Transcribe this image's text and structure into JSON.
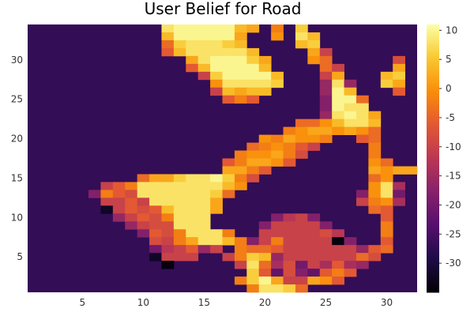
{
  "chart_data": {
    "type": "heatmap",
    "title": "User Belief for Road",
    "xlabel": "",
    "ylabel": "",
    "x_range": [
      0.5,
      32.5
    ],
    "y_range": [
      0.5,
      34.5
    ],
    "x_ticks": [
      5,
      10,
      15,
      20,
      25,
      30
    ],
    "y_ticks": [
      5,
      10,
      15,
      20,
      25,
      30
    ],
    "colorbar": {
      "colormap": "inferno",
      "range": [
        -35,
        11
      ],
      "ticks": [
        10,
        5,
        0,
        -5,
        -10,
        -15,
        -20,
        -25,
        -30
      ]
    },
    "background_value": -27,
    "cells": [
      [
        12,
        34,
        8
      ],
      [
        13,
        34,
        10
      ],
      [
        14,
        34,
        10
      ],
      [
        15,
        34,
        10
      ],
      [
        16,
        34,
        10
      ],
      [
        17,
        34,
        10
      ],
      [
        18,
        34,
        4
      ],
      [
        19,
        34,
        2
      ],
      [
        21,
        34,
        -2
      ],
      [
        23,
        34,
        6
      ],
      [
        12,
        33,
        4
      ],
      [
        13,
        33,
        10
      ],
      [
        14,
        33,
        10
      ],
      [
        15,
        33,
        10
      ],
      [
        16,
        33,
        10
      ],
      [
        17,
        33,
        10
      ],
      [
        18,
        33,
        2
      ],
      [
        21,
        33,
        0
      ],
      [
        23,
        33,
        8
      ],
      [
        24,
        33,
        4
      ],
      [
        12,
        32,
        -4
      ],
      [
        13,
        32,
        6
      ],
      [
        14,
        32,
        8
      ],
      [
        15,
        32,
        8
      ],
      [
        16,
        32,
        8
      ],
      [
        17,
        32,
        6
      ],
      [
        18,
        32,
        4
      ],
      [
        23,
        32,
        4
      ],
      [
        24,
        32,
        6
      ],
      [
        12,
        31,
        -6
      ],
      [
        13,
        31,
        4
      ],
      [
        14,
        31,
        8
      ],
      [
        15,
        31,
        8
      ],
      [
        16,
        31,
        8
      ],
      [
        17,
        31,
        8
      ],
      [
        18,
        31,
        8
      ],
      [
        19,
        31,
        4
      ],
      [
        24,
        31,
        2
      ],
      [
        25,
        31,
        -10
      ],
      [
        14,
        30,
        2
      ],
      [
        15,
        30,
        8
      ],
      [
        16,
        30,
        10
      ],
      [
        17,
        30,
        10
      ],
      [
        18,
        30,
        10
      ],
      [
        19,
        30,
        6
      ],
      [
        20,
        30,
        2
      ],
      [
        24,
        30,
        0
      ],
      [
        25,
        30,
        -4
      ],
      [
        31,
        30,
        -8
      ],
      [
        14,
        29,
        -6
      ],
      [
        15,
        29,
        4
      ],
      [
        16,
        29,
        10
      ],
      [
        17,
        29,
        10
      ],
      [
        18,
        29,
        10
      ],
      [
        19,
        29,
        10
      ],
      [
        20,
        29,
        4
      ],
      [
        25,
        29,
        -4
      ],
      [
        26,
        29,
        -10
      ],
      [
        31,
        29,
        2
      ],
      [
        15,
        28,
        -10
      ],
      [
        16,
        28,
        6
      ],
      [
        17,
        28,
        10
      ],
      [
        18,
        28,
        10
      ],
      [
        19,
        28,
        10
      ],
      [
        20,
        28,
        10
      ],
      [
        21,
        28,
        4
      ],
      [
        25,
        28,
        -10
      ],
      [
        26,
        28,
        2
      ],
      [
        30,
        28,
        4
      ],
      [
        31,
        28,
        6
      ],
      [
        16,
        27,
        0
      ],
      [
        17,
        27,
        8
      ],
      [
        18,
        27,
        8
      ],
      [
        19,
        27,
        8
      ],
      [
        20,
        27,
        8
      ],
      [
        21,
        27,
        6
      ],
      [
        25,
        27,
        -16
      ],
      [
        26,
        27,
        8
      ],
      [
        27,
        27,
        -16
      ],
      [
        30,
        27,
        6
      ],
      [
        31,
        27,
        2
      ],
      [
        16,
        26,
        -10
      ],
      [
        17,
        26,
        4
      ],
      [
        18,
        26,
        2
      ],
      [
        19,
        26,
        4
      ],
      [
        20,
        26,
        4
      ],
      [
        25,
        26,
        -16
      ],
      [
        26,
        26,
        10
      ],
      [
        27,
        26,
        4
      ],
      [
        31,
        26,
        -6
      ],
      [
        17,
        25,
        -6
      ],
      [
        18,
        25,
        -2
      ],
      [
        19,
        25,
        -6
      ],
      [
        25,
        25,
        -18
      ],
      [
        26,
        25,
        10
      ],
      [
        27,
        25,
        10
      ],
      [
        28,
        25,
        -4
      ],
      [
        25,
        24,
        -18
      ],
      [
        26,
        24,
        10
      ],
      [
        27,
        24,
        8
      ],
      [
        28,
        24,
        8
      ],
      [
        25,
        23,
        -16
      ],
      [
        26,
        23,
        8
      ],
      [
        27,
        23,
        10
      ],
      [
        28,
        23,
        8
      ],
      [
        29,
        23,
        2
      ],
      [
        23,
        22,
        -4
      ],
      [
        24,
        22,
        -4
      ],
      [
        25,
        22,
        0
      ],
      [
        26,
        22,
        4
      ],
      [
        27,
        22,
        8
      ],
      [
        28,
        22,
        8
      ],
      [
        29,
        22,
        4
      ],
      [
        22,
        21,
        -2
      ],
      [
        23,
        21,
        0
      ],
      [
        24,
        21,
        2
      ],
      [
        25,
        21,
        2
      ],
      [
        26,
        21,
        0
      ],
      [
        27,
        21,
        2
      ],
      [
        28,
        21,
        0
      ],
      [
        29,
        21,
        -4
      ],
      [
        20,
        20,
        0
      ],
      [
        21,
        20,
        -2
      ],
      [
        22,
        20,
        2
      ],
      [
        23,
        20,
        0
      ],
      [
        24,
        20,
        0
      ],
      [
        25,
        20,
        -2
      ],
      [
        28,
        20,
        -6
      ],
      [
        29,
        20,
        -4
      ],
      [
        19,
        19,
        -4
      ],
      [
        20,
        19,
        -2
      ],
      [
        21,
        19,
        0
      ],
      [
        22,
        19,
        -2
      ],
      [
        23,
        19,
        -6
      ],
      [
        24,
        19,
        -10
      ],
      [
        29,
        19,
        -2
      ],
      [
        18,
        18,
        -2
      ],
      [
        19,
        18,
        0
      ],
      [
        20,
        18,
        0
      ],
      [
        21,
        18,
        2
      ],
      [
        22,
        18,
        -2
      ],
      [
        23,
        18,
        -8
      ],
      [
        29,
        18,
        -2
      ],
      [
        17,
        17,
        -6
      ],
      [
        18,
        17,
        -2
      ],
      [
        19,
        17,
        2
      ],
      [
        20,
        17,
        2
      ],
      [
        21,
        17,
        0
      ],
      [
        22,
        17,
        -6
      ],
      [
        29,
        17,
        0
      ],
      [
        30,
        17,
        -4
      ],
      [
        17,
        16,
        2
      ],
      [
        18,
        16,
        2
      ],
      [
        19,
        16,
        -2
      ],
      [
        20,
        16,
        -6
      ],
      [
        29,
        16,
        2
      ],
      [
        30,
        16,
        0
      ],
      [
        31,
        16,
        2
      ],
      [
        32,
        16,
        2
      ],
      [
        10,
        15,
        -4
      ],
      [
        11,
        15,
        2
      ],
      [
        12,
        15,
        2
      ],
      [
        13,
        15,
        6
      ],
      [
        14,
        15,
        8
      ],
      [
        15,
        15,
        8
      ],
      [
        16,
        15,
        10
      ],
      [
        17,
        15,
        6
      ],
      [
        18,
        15,
        -2
      ],
      [
        19,
        15,
        -8
      ],
      [
        29,
        15,
        -4
      ],
      [
        30,
        15,
        0
      ],
      [
        7,
        14,
        -10
      ],
      [
        8,
        14,
        -6
      ],
      [
        9,
        14,
        -2
      ],
      [
        10,
        14,
        8
      ],
      [
        11,
        14,
        8
      ],
      [
        12,
        14,
        8
      ],
      [
        13,
        14,
        8
      ],
      [
        14,
        14,
        8
      ],
      [
        15,
        14,
        8
      ],
      [
        16,
        14,
        8
      ],
      [
        17,
        14,
        4
      ],
      [
        18,
        14,
        0
      ],
      [
        29,
        14,
        0
      ],
      [
        30,
        14,
        8
      ],
      [
        31,
        14,
        -14
      ],
      [
        6,
        13,
        -18
      ],
      [
        7,
        13,
        -2
      ],
      [
        8,
        13,
        -6
      ],
      [
        9,
        13,
        -8
      ],
      [
        10,
        13,
        8
      ],
      [
        11,
        13,
        8
      ],
      [
        12,
        13,
        8
      ],
      [
        13,
        13,
        8
      ],
      [
        14,
        13,
        8
      ],
      [
        15,
        13,
        8
      ],
      [
        16,
        13,
        6
      ],
      [
        17,
        13,
        -4
      ],
      [
        28,
        13,
        -18
      ],
      [
        29,
        13,
        0
      ],
      [
        30,
        13,
        8
      ],
      [
        31,
        13,
        -20
      ],
      [
        7,
        12,
        -10
      ],
      [
        8,
        12,
        -10
      ],
      [
        9,
        12,
        -6
      ],
      [
        10,
        12,
        -10
      ],
      [
        11,
        12,
        8
      ],
      [
        12,
        12,
        8
      ],
      [
        13,
        12,
        8
      ],
      [
        14,
        12,
        8
      ],
      [
        15,
        12,
        8
      ],
      [
        16,
        12,
        2
      ],
      [
        28,
        12,
        -10
      ],
      [
        29,
        12,
        -2
      ],
      [
        30,
        12,
        0
      ],
      [
        31,
        12,
        -14
      ],
      [
        7,
        11,
        -32
      ],
      [
        8,
        11,
        -10
      ],
      [
        9,
        11,
        -6
      ],
      [
        10,
        11,
        -8
      ],
      [
        11,
        11,
        -6
      ],
      [
        12,
        11,
        4
      ],
      [
        13,
        11,
        8
      ],
      [
        14,
        11,
        8
      ],
      [
        15,
        11,
        8
      ],
      [
        16,
        11,
        2
      ],
      [
        29,
        11,
        -4
      ],
      [
        30,
        11,
        -6
      ],
      [
        8,
        10,
        -16
      ],
      [
        9,
        10,
        -10
      ],
      [
        10,
        10,
        -6
      ],
      [
        11,
        10,
        -8
      ],
      [
        12,
        10,
        -2
      ],
      [
        13,
        10,
        8
      ],
      [
        14,
        10,
        8
      ],
      [
        15,
        10,
        8
      ],
      [
        21,
        10,
        -18
      ],
      [
        22,
        10,
        -12
      ],
      [
        23,
        10,
        -10
      ],
      [
        24,
        10,
        -18
      ],
      [
        30,
        10,
        -6
      ],
      [
        9,
        9,
        -16
      ],
      [
        10,
        9,
        -10
      ],
      [
        11,
        9,
        -8
      ],
      [
        12,
        9,
        -8
      ],
      [
        13,
        9,
        8
      ],
      [
        14,
        9,
        8
      ],
      [
        15,
        9,
        8
      ],
      [
        20,
        9,
        -18
      ],
      [
        21,
        9,
        -10
      ],
      [
        22,
        9,
        -10
      ],
      [
        23,
        9,
        -10
      ],
      [
        24,
        9,
        -10
      ],
      [
        25,
        9,
        -18
      ],
      [
        30,
        9,
        -2
      ],
      [
        10,
        8,
        -18
      ],
      [
        11,
        8,
        -6
      ],
      [
        12,
        8,
        -8
      ],
      [
        13,
        8,
        -2
      ],
      [
        14,
        8,
        8
      ],
      [
        15,
        8,
        8
      ],
      [
        16,
        8,
        8
      ],
      [
        17,
        8,
        -2
      ],
      [
        20,
        8,
        -10
      ],
      [
        21,
        8,
        -10
      ],
      [
        22,
        8,
        -10
      ],
      [
        23,
        8,
        -10
      ],
      [
        24,
        8,
        -10
      ],
      [
        25,
        8,
        -8
      ],
      [
        26,
        8,
        -12
      ],
      [
        30,
        8,
        -2
      ],
      [
        11,
        7,
        -8
      ],
      [
        12,
        7,
        -10
      ],
      [
        13,
        7,
        -2
      ],
      [
        14,
        7,
        2
      ],
      [
        15,
        7,
        8
      ],
      [
        16,
        7,
        8
      ],
      [
        17,
        7,
        4
      ],
      [
        18,
        7,
        -2
      ],
      [
        19,
        7,
        -18
      ],
      [
        20,
        7,
        -10
      ],
      [
        21,
        7,
        -2
      ],
      [
        22,
        7,
        -10
      ],
      [
        23,
        7,
        -10
      ],
      [
        24,
        7,
        -10
      ],
      [
        25,
        7,
        -10
      ],
      [
        26,
        7,
        -34
      ],
      [
        27,
        7,
        -18
      ],
      [
        30,
        7,
        -6
      ],
      [
        11,
        6,
        -20
      ],
      [
        12,
        6,
        -12
      ],
      [
        13,
        6,
        -10
      ],
      [
        14,
        6,
        -6
      ],
      [
        15,
        6,
        -16
      ],
      [
        16,
        6,
        -10
      ],
      [
        18,
        6,
        -2
      ],
      [
        19,
        6,
        -4
      ],
      [
        20,
        6,
        -4
      ],
      [
        21,
        6,
        -6
      ],
      [
        22,
        6,
        -10
      ],
      [
        23,
        6,
        -10
      ],
      [
        24,
        6,
        -10
      ],
      [
        25,
        6,
        -10
      ],
      [
        26,
        6,
        -10
      ],
      [
        27,
        6,
        -10
      ],
      [
        28,
        6,
        -16
      ],
      [
        29,
        6,
        -6
      ],
      [
        30,
        6,
        -4
      ],
      [
        11,
        5,
        -32
      ],
      [
        12,
        5,
        -10
      ],
      [
        13,
        5,
        -10
      ],
      [
        14,
        5,
        -10
      ],
      [
        17,
        5,
        -10
      ],
      [
        18,
        5,
        -2
      ],
      [
        19,
        5,
        6
      ],
      [
        20,
        5,
        4
      ],
      [
        21,
        5,
        -16
      ],
      [
        22,
        5,
        -10
      ],
      [
        23,
        5,
        -10
      ],
      [
        24,
        5,
        -10
      ],
      [
        25,
        5,
        -10
      ],
      [
        26,
        5,
        -10
      ],
      [
        27,
        5,
        -10
      ],
      [
        28,
        5,
        -4
      ],
      [
        29,
        5,
        -8
      ],
      [
        12,
        4,
        -34
      ],
      [
        18,
        4,
        -10
      ],
      [
        19,
        4,
        8
      ],
      [
        20,
        4,
        -4
      ],
      [
        21,
        4,
        -14
      ],
      [
        22,
        4,
        -8
      ],
      [
        23,
        4,
        -20
      ],
      [
        24,
        4,
        -10
      ],
      [
        25,
        4,
        -14
      ],
      [
        26,
        4,
        -6
      ],
      [
        27,
        4,
        -14
      ],
      [
        28,
        4,
        -16
      ],
      [
        19,
        3,
        6
      ],
      [
        20,
        3,
        -6
      ],
      [
        21,
        3,
        -22
      ],
      [
        22,
        3,
        -8
      ],
      [
        23,
        3,
        -18
      ],
      [
        24,
        3,
        -22
      ],
      [
        25,
        3,
        -6
      ],
      [
        26,
        3,
        -2
      ],
      [
        27,
        3,
        -6
      ],
      [
        18,
        2,
        -2
      ],
      [
        19,
        2,
        6
      ],
      [
        20,
        2,
        10
      ],
      [
        21,
        2,
        2
      ],
      [
        22,
        2,
        -10
      ],
      [
        23,
        2,
        -10
      ],
      [
        24,
        2,
        2
      ],
      [
        25,
        2,
        0
      ],
      [
        26,
        2,
        -6
      ],
      [
        19,
        1,
        -2
      ],
      [
        20,
        1,
        8
      ],
      [
        21,
        1,
        8
      ],
      [
        22,
        1,
        6
      ],
      [
        23,
        1,
        -4
      ]
    ]
  }
}
